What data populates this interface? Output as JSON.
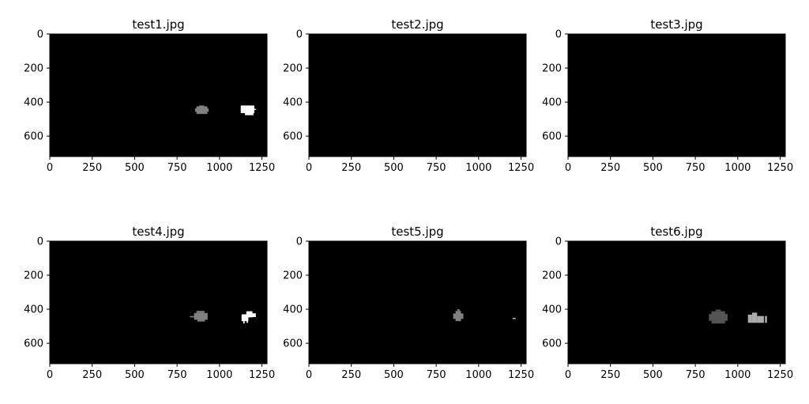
{
  "chart_data": [
    {
      "type": "heatmap",
      "title": "test1.jpg",
      "xlim": [
        0,
        1280
      ],
      "ylim": [
        720,
        0
      ],
      "xticks": [
        0,
        250,
        500,
        750,
        1000,
        1250
      ],
      "yticks": [
        0,
        200,
        400,
        600
      ],
      "background": "#000000",
      "blobs": [
        {
          "intensity": 0.5,
          "rects": [
            [
              864,
              425,
              64,
              45
            ],
            [
              856,
              437,
              80,
              20
            ],
            [
              880,
              420,
              30,
              5
            ]
          ]
        },
        {
          "intensity": 1.0,
          "rects": [
            [
              1125,
              420,
              80,
              45
            ],
            [
              1150,
              455,
              50,
              22
            ],
            [
              1200,
              440,
              16,
              6
            ]
          ]
        }
      ]
    },
    {
      "type": "heatmap",
      "title": "test2.jpg",
      "xlim": [
        0,
        1280
      ],
      "ylim": [
        720,
        0
      ],
      "xticks": [
        0,
        250,
        500,
        750,
        1000,
        1250
      ],
      "yticks": [
        0,
        200,
        400,
        600
      ],
      "background": "#000000",
      "blobs": []
    },
    {
      "type": "heatmap",
      "title": "test3.jpg",
      "xlim": [
        0,
        1280
      ],
      "ylim": [
        720,
        0
      ],
      "xticks": [
        0,
        250,
        500,
        750,
        1000,
        1250
      ],
      "yticks": [
        0,
        200,
        400,
        600
      ],
      "background": "#000000",
      "blobs": []
    },
    {
      "type": "heatmap",
      "title": "test4.jpg",
      "xlim": [
        0,
        1280
      ],
      "ylim": [
        720,
        0
      ],
      "xticks": [
        0,
        250,
        500,
        750,
        1000,
        1250
      ],
      "yticks": [
        0,
        200,
        400,
        600
      ],
      "background": "#000000",
      "blobs": [
        {
          "intensity": 0.5,
          "rects": [
            [
              864,
              410,
              48,
              12
            ],
            [
              850,
              422,
              80,
              40
            ],
            [
              826,
              440,
              24,
              8
            ],
            [
              870,
              462,
              44,
              10
            ]
          ]
        },
        {
          "intensity": 1.0,
          "rects": [
            [
              1130,
              430,
              40,
              40
            ],
            [
              1158,
              412,
              36,
              36
            ],
            [
              1190,
              424,
              24,
              22
            ],
            [
              1140,
              468,
              8,
              16
            ],
            [
              1160,
              466,
              8,
              14
            ]
          ]
        }
      ]
    },
    {
      "type": "heatmap",
      "title": "test5.jpg",
      "xlim": [
        0,
        1280
      ],
      "ylim": [
        720,
        0
      ],
      "xticks": [
        0,
        250,
        500,
        750,
        1000,
        1250
      ],
      "yticks": [
        0,
        200,
        400,
        600
      ],
      "background": "#000000",
      "blobs": [
        {
          "intensity": 0.5,
          "rects": [
            [
              864,
              410,
              32,
              60
            ],
            [
              850,
              425,
              60,
              32
            ],
            [
              874,
              400,
              14,
              10
            ]
          ]
        },
        {
          "intensity": 1.0,
          "rects": [
            [
              1200,
              452,
              18,
              5
            ]
          ]
        }
      ]
    },
    {
      "type": "heatmap",
      "title": "test6.jpg",
      "xlim": [
        0,
        1280
      ],
      "ylim": [
        720,
        0
      ],
      "xticks": [
        0,
        250,
        500,
        750,
        1000,
        1250
      ],
      "yticks": [
        0,
        200,
        400,
        600
      ],
      "background": "#000000",
      "blobs": [
        {
          "intensity": 0.33,
          "rects": [
            [
              845,
              412,
              80,
              72
            ],
            [
              830,
              428,
              110,
              40
            ],
            [
              870,
              402,
              30,
              10
            ]
          ]
        },
        {
          "intensity": 0.67,
          "rects": [
            [
              1060,
              432,
              24,
              48
            ],
            [
              1084,
              420,
              30,
              60
            ],
            [
              1114,
              440,
              40,
              40
            ],
            [
              1160,
              440,
              12,
              40
            ]
          ]
        }
      ]
    }
  ]
}
